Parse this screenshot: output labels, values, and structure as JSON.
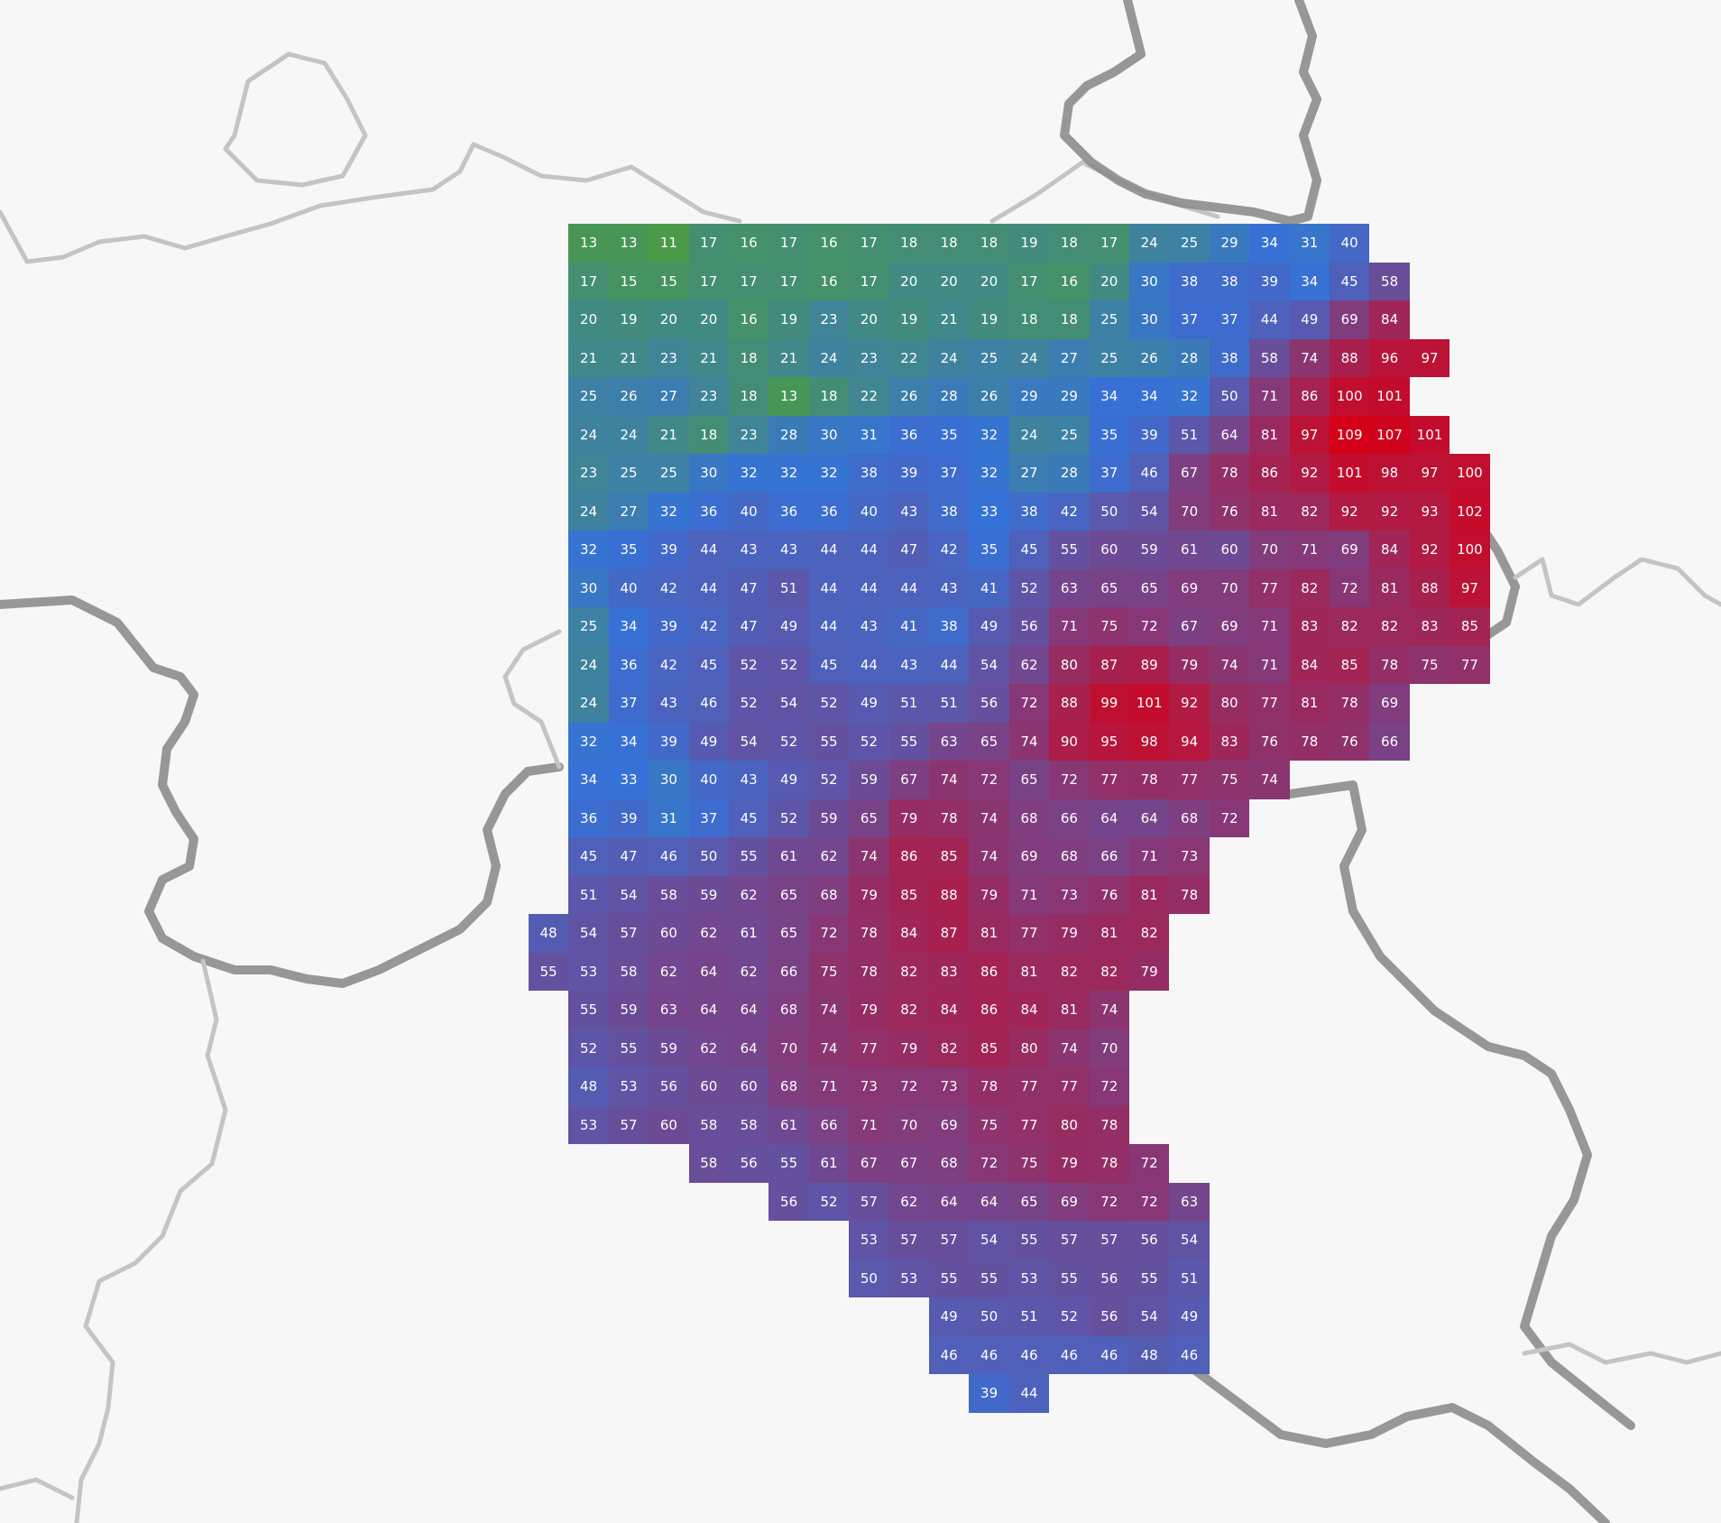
{
  "colors": {
    "low": "#4a9a48",
    "mid": "#3572d8",
    "high": "#d40018",
    "map_background": "#f7f7f7",
    "border": "#8c8c8c",
    "label": "#ffffff"
  },
  "color_scale": {
    "min": 11,
    "mid": 33,
    "max": 109
  },
  "grid_rows": [
    {
      "start": 1,
      "values": [
        13,
        13,
        11,
        17,
        16,
        17,
        16,
        17,
        18,
        18,
        18,
        19,
        18,
        17,
        24,
        25,
        29,
        34,
        31,
        40
      ]
    },
    {
      "start": 1,
      "values": [
        17,
        15,
        15,
        17,
        17,
        17,
        16,
        17,
        20,
        20,
        20,
        17,
        16,
        20,
        30,
        38,
        38,
        39,
        34,
        45,
        58
      ]
    },
    {
      "start": 1,
      "values": [
        20,
        19,
        20,
        20,
        16,
        19,
        23,
        20,
        19,
        21,
        19,
        18,
        18,
        25,
        30,
        37,
        37,
        44,
        49,
        69,
        84
      ]
    },
    {
      "start": 1,
      "values": [
        21,
        21,
        23,
        21,
        18,
        21,
        24,
        23,
        22,
        24,
        25,
        24,
        27,
        25,
        26,
        28,
        38,
        58,
        74,
        88,
        96,
        97
      ]
    },
    {
      "start": 1,
      "values": [
        25,
        26,
        27,
        23,
        18,
        13,
        18,
        22,
        26,
        28,
        26,
        29,
        29,
        34,
        34,
        32,
        50,
        71,
        86,
        100,
        101
      ]
    },
    {
      "start": 1,
      "values": [
        24,
        24,
        21,
        18,
        23,
        28,
        30,
        31,
        36,
        35,
        32,
        24,
        25,
        35,
        39,
        51,
        64,
        81,
        97,
        109,
        107,
        101
      ]
    },
    {
      "start": 1,
      "values": [
        23,
        25,
        25,
        30,
        32,
        32,
        32,
        38,
        39,
        37,
        32,
        27,
        28,
        37,
        46,
        67,
        78,
        86,
        92,
        101,
        98,
        97,
        100
      ]
    },
    {
      "start": 1,
      "values": [
        24,
        27,
        32,
        36,
        40,
        36,
        36,
        40,
        43,
        38,
        33,
        38,
        42,
        50,
        54,
        70,
        76,
        81,
        82,
        92,
        92,
        93,
        102
      ]
    },
    {
      "start": 1,
      "values": [
        32,
        35,
        39,
        44,
        43,
        43,
        44,
        44,
        47,
        42,
        35,
        45,
        55,
        60,
        59,
        61,
        60,
        70,
        71,
        69,
        84,
        92,
        100
      ]
    },
    {
      "start": 1,
      "values": [
        30,
        40,
        42,
        44,
        47,
        51,
        44,
        44,
        44,
        43,
        41,
        52,
        63,
        65,
        65,
        69,
        70,
        77,
        82,
        72,
        81,
        88,
        97
      ]
    },
    {
      "start": 1,
      "values": [
        25,
        34,
        39,
        42,
        47,
        49,
        44,
        43,
        41,
        38,
        49,
        56,
        71,
        75,
        72,
        67,
        69,
        71,
        83,
        82,
        82,
        83,
        85
      ]
    },
    {
      "start": 1,
      "values": [
        24,
        36,
        42,
        45,
        52,
        52,
        45,
        44,
        43,
        44,
        54,
        62,
        80,
        87,
        89,
        79,
        74,
        71,
        84,
        85,
        78,
        75,
        77
      ]
    },
    {
      "start": 1,
      "values": [
        24,
        37,
        43,
        46,
        52,
        54,
        52,
        49,
        51,
        51,
        56,
        72,
        88,
        99,
        101,
        92,
        80,
        77,
        81,
        78,
        69
      ]
    },
    {
      "start": 1,
      "values": [
        32,
        34,
        39,
        49,
        54,
        52,
        55,
        52,
        55,
        63,
        65,
        74,
        90,
        95,
        98,
        94,
        83,
        76,
        78,
        76,
        66
      ]
    },
    {
      "start": 1,
      "values": [
        34,
        33,
        30,
        40,
        43,
        49,
        52,
        59,
        67,
        74,
        72,
        65,
        72,
        77,
        78,
        77,
        75,
        74
      ]
    },
    {
      "start": 1,
      "values": [
        36,
        39,
        31,
        37,
        45,
        52,
        59,
        65,
        79,
        78,
        74,
        68,
        66,
        64,
        64,
        68,
        72
      ]
    },
    {
      "start": 1,
      "values": [
        45,
        47,
        46,
        50,
        55,
        61,
        62,
        74,
        86,
        85,
        74,
        69,
        68,
        66,
        71,
        73
      ]
    },
    {
      "start": 1,
      "values": [
        51,
        54,
        58,
        59,
        62,
        65,
        68,
        79,
        85,
        88,
        79,
        71,
        73,
        76,
        81,
        78
      ]
    },
    {
      "start": 0,
      "values": [
        48,
        54,
        57,
        60,
        62,
        61,
        65,
        72,
        78,
        84,
        87,
        81,
        77,
        79,
        81,
        82
      ]
    },
    {
      "start": 0,
      "values": [
        55,
        53,
        58,
        62,
        64,
        62,
        66,
        75,
        78,
        82,
        83,
        86,
        81,
        82,
        82,
        79
      ]
    },
    {
      "start": 1,
      "values": [
        55,
        59,
        63,
        64,
        64,
        68,
        74,
        79,
        82,
        84,
        86,
        84,
        81,
        74
      ]
    },
    {
      "start": 1,
      "values": [
        52,
        55,
        59,
        62,
        64,
        70,
        74,
        77,
        79,
        82,
        85,
        80,
        74,
        70
      ]
    },
    {
      "start": 1,
      "values": [
        48,
        53,
        56,
        60,
        60,
        68,
        71,
        73,
        72,
        73,
        78,
        77,
        77,
        72
      ]
    },
    {
      "start": 1,
      "values": [
        53,
        57,
        60,
        58,
        58,
        61,
        66,
        71,
        70,
        69,
        75,
        77,
        80,
        78
      ]
    },
    {
      "start": 4,
      "values": [
        58,
        56,
        55,
        61,
        67,
        67,
        68,
        72,
        75,
        79,
        78,
        72
      ]
    },
    {
      "start": 6,
      "values": [
        56,
        52,
        57,
        62,
        64,
        64,
        65,
        69,
        72,
        72,
        63
      ]
    },
    {
      "start": 8,
      "values": [
        53,
        57,
        57,
        54,
        55,
        57,
        57,
        56,
        54
      ]
    },
    {
      "start": 8,
      "values": [
        50,
        53,
        55,
        55,
        53,
        55,
        56,
        55,
        51
      ]
    },
    {
      "start": 10,
      "values": [
        49,
        50,
        51,
        52,
        56,
        54,
        49
      ]
    },
    {
      "start": 10,
      "values": [
        46,
        46,
        46,
        46,
        46,
        48,
        46
      ]
    },
    {
      "start": 11,
      "values": [
        39,
        44
      ]
    }
  ]
}
